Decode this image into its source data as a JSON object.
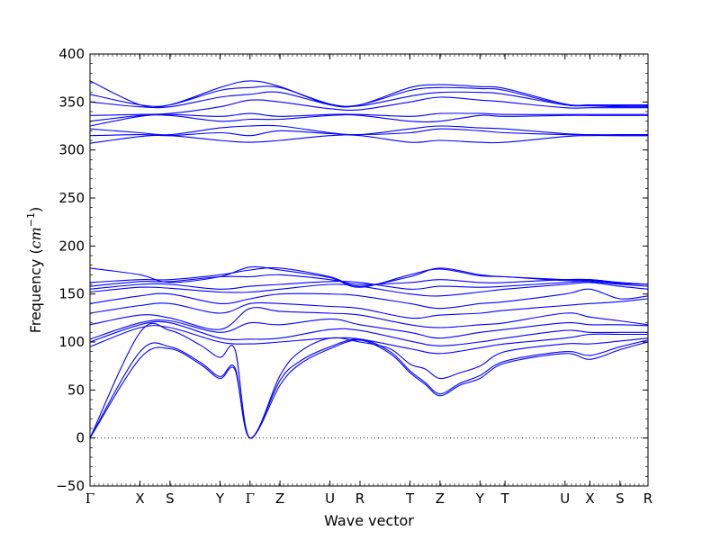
{
  "chart_data": {
    "type": "line",
    "title": "",
    "xlabel": "Wave vector",
    "ylabel_prefix": "Frequency (",
    "ylabel_unit": "cm",
    "ylabel_exp": "−1",
    "ylabel_suffix": ")",
    "ylim": [
      -50,
      400
    ],
    "yticks": [
      -50,
      0,
      50,
      100,
      150,
      200,
      250,
      300,
      350,
      400
    ],
    "grid": false,
    "legend": "none",
    "line_color": "#0000ff",
    "zero_line": {
      "y": 0,
      "style": "dotted",
      "color": "#000000"
    },
    "x_labels": [
      {
        "label": "Γ",
        "x": 0.0
      },
      {
        "label": "X",
        "x": 0.5
      },
      {
        "label": "S",
        "x": 0.8
      },
      {
        "label": "Y",
        "x": 1.3
      },
      {
        "label": "Γ",
        "x": 1.6
      },
      {
        "label": "Z",
        "x": 1.9
      },
      {
        "label": "U",
        "x": 2.4
      },
      {
        "label": "R",
        "x": 2.7
      },
      {
        "label": "T",
        "x": 3.2
      },
      {
        "label": "Z",
        "x": 3.5
      },
      {
        "label": "Y",
        "x": 3.9
      },
      {
        "label": "T",
        "x": 4.15
      },
      {
        "label": "U",
        "x": 4.75
      },
      {
        "label": "X",
        "x": 5.0
      },
      {
        "label": "S",
        "x": 5.3
      },
      {
        "label": "R",
        "x": 5.58
      }
    ],
    "xlim": [
      0,
      5.58
    ],
    "series": [
      {
        "x": [
          0,
          0.5,
          0.8,
          1.1,
          1.3,
          1.45,
          1.6,
          1.9,
          2.1,
          2.4,
          2.7,
          3.0,
          3.2,
          3.35,
          3.5,
          3.7,
          3.9,
          4.15,
          4.75,
          5.0,
          5.3,
          5.58
        ],
        "y": [
          0,
          83,
          93,
          77,
          62,
          71,
          0,
          55,
          77,
          93,
          102,
          88,
          68,
          56,
          44,
          55,
          62,
          78,
          88,
          82,
          92,
          100
        ]
      },
      {
        "x": [
          0,
          0.5,
          0.8,
          1.1,
          1.3,
          1.45,
          1.6,
          1.9,
          2.1,
          2.4,
          2.7,
          3.0,
          3.2,
          3.35,
          3.5,
          3.7,
          3.9,
          4.15,
          4.75,
          5.0,
          5.3,
          5.58
        ],
        "y": [
          0,
          90,
          95,
          79,
          64,
          73,
          0,
          60,
          80,
          95,
          103,
          90,
          70,
          58,
          46,
          57,
          65,
          80,
          90,
          86,
          95,
          102
        ]
      },
      {
        "x": [
          0,
          0.5,
          0.8,
          1.1,
          1.3,
          1.45,
          1.6,
          1.9,
          2.1,
          2.4,
          2.7,
          3.0,
          3.2,
          3.35,
          3.5,
          3.7,
          3.9,
          4.15,
          4.75,
          5.0,
          5.3,
          5.58
        ],
        "y": [
          0,
          110,
          112,
          97,
          84,
          92,
          0,
          65,
          90,
          104,
          100,
          93,
          77,
          72,
          62,
          68,
          75,
          90,
          98,
          98,
          101,
          104
        ]
      },
      {
        "x": [
          0,
          0.5,
          0.8,
          1.3,
          1.6,
          1.9,
          2.4,
          2.7,
          3.2,
          3.5,
          3.9,
          4.15,
          4.75,
          5.0,
          5.3,
          5.58
        ],
        "y": [
          95,
          115,
          115,
          100,
          98,
          100,
          104,
          103,
          93,
          88,
          94,
          98,
          104,
          108,
          108,
          108
        ]
      },
      {
        "x": [
          0,
          0.5,
          0.8,
          1.3,
          1.6,
          1.9,
          2.4,
          2.7,
          3.2,
          3.5,
          3.9,
          4.15,
          4.75,
          5.0,
          5.3,
          5.58
        ],
        "y": [
          100,
          118,
          120,
          104,
          103,
          104,
          113,
          112,
          101,
          96,
          100,
          104,
          112,
          110,
          110,
          110
        ]
      },
      {
        "x": [
          0,
          0.5,
          0.8,
          1.3,
          1.6,
          1.9,
          2.4,
          2.7,
          3.2,
          3.5,
          3.9,
          4.15,
          4.75,
          5.0,
          5.3,
          5.58
        ],
        "y": [
          103,
          120,
          122,
          110,
          120,
          118,
          124,
          118,
          110,
          104,
          110,
          113,
          120,
          118,
          118,
          117
        ]
      },
      {
        "x": [
          0,
          0.5,
          0.8,
          1.3,
          1.6,
          1.9,
          2.4,
          2.7,
          3.2,
          3.5,
          3.9,
          4.15,
          4.75,
          5.0,
          5.3,
          5.58
        ],
        "y": [
          118,
          128,
          125,
          113,
          135,
          132,
          130,
          128,
          118,
          115,
          118,
          120,
          130,
          126,
          122,
          118
        ]
      },
      {
        "x": [
          0,
          0.5,
          0.8,
          1.3,
          1.6,
          1.9,
          2.4,
          2.7,
          3.2,
          3.5,
          3.9,
          4.15,
          4.75,
          5.0,
          5.3,
          5.58
        ],
        "y": [
          130,
          138,
          140,
          130,
          140,
          140,
          137,
          135,
          125,
          128,
          130,
          133,
          138,
          140,
          142,
          145
        ]
      },
      {
        "x": [
          0,
          0.5,
          0.8,
          1.3,
          1.6,
          1.9,
          2.4,
          2.7,
          3.2,
          3.5,
          3.9,
          4.15,
          4.75,
          5.0,
          5.3,
          5.58
        ],
        "y": [
          140,
          148,
          150,
          140,
          145,
          150,
          150,
          148,
          140,
          135,
          140,
          142,
          150,
          155,
          145,
          148
        ]
      },
      {
        "x": [
          0,
          0.5,
          0.8,
          1.3,
          1.6,
          1.9,
          2.4,
          2.7,
          3.2,
          3.5,
          3.9,
          4.15,
          4.75,
          5.0,
          5.3,
          5.58
        ],
        "y": [
          152,
          157,
          156,
          152,
          152,
          155,
          160,
          158,
          150,
          148,
          152,
          155,
          160,
          162,
          158,
          155
        ]
      },
      {
        "x": [
          0,
          0.5,
          0.8,
          1.3,
          1.6,
          1.9,
          2.4,
          2.7,
          3.2,
          3.5,
          3.9,
          4.15,
          4.75,
          5.0,
          5.3,
          5.58
        ],
        "y": [
          155,
          160,
          160,
          155,
          158,
          160,
          163,
          162,
          155,
          158,
          157,
          158,
          162,
          163,
          160,
          158
        ]
      },
      {
        "x": [
          0,
          0.5,
          0.8,
          1.3,
          1.6,
          1.9,
          2.4,
          2.7,
          3.2,
          3.5,
          3.9,
          4.15,
          4.75,
          5.0,
          5.3,
          5.58
        ],
        "y": [
          158,
          163,
          163,
          168,
          168,
          170,
          165,
          160,
          162,
          165,
          162,
          162,
          165,
          165,
          162,
          160
        ]
      },
      {
        "x": [
          0,
          0.5,
          0.8,
          1.3,
          1.6,
          1.9,
          2.4,
          2.7,
          3.2,
          3.5,
          3.9,
          4.15,
          4.75,
          5.0,
          5.3,
          5.58
        ],
        "y": [
          162,
          165,
          165,
          170,
          175,
          177,
          168,
          158,
          168,
          177,
          170,
          168,
          165,
          165,
          162,
          160
        ]
      },
      {
        "x": [
          0,
          0.5,
          0.8,
          1.3,
          1.6,
          1.9,
          2.4,
          2.7,
          3.2,
          3.5,
          3.9,
          4.15,
          4.75,
          5.0,
          5.3,
          5.58
        ],
        "y": [
          177,
          170,
          162,
          168,
          178,
          175,
          167,
          157,
          170,
          176,
          169,
          168,
          164,
          164,
          161,
          160
        ]
      },
      {
        "x": [
          0,
          0.5,
          0.8,
          1.3,
          1.6,
          1.9,
          2.4,
          2.7,
          3.2,
          3.5,
          3.9,
          4.15,
          4.75,
          5.0,
          5.3,
          5.58
        ],
        "y": [
          307,
          314,
          315,
          310,
          308,
          310,
          315,
          315,
          308,
          310,
          308,
          308,
          314,
          315,
          315,
          315
        ]
      },
      {
        "x": [
          0,
          0.5,
          0.8,
          1.3,
          1.6,
          1.9,
          2.4,
          2.7,
          3.2,
          3.5,
          3.9,
          4.15,
          4.75,
          5.0,
          5.3,
          5.58
        ],
        "y": [
          315,
          316,
          315,
          318,
          315,
          320,
          317,
          316,
          318,
          322,
          320,
          318,
          316,
          316,
          315,
          315
        ]
      },
      {
        "x": [
          0,
          0.5,
          0.8,
          1.3,
          1.6,
          1.9,
          2.4,
          2.7,
          3.2,
          3.5,
          3.9,
          4.15,
          4.75,
          5.0,
          5.3,
          5.58
        ],
        "y": [
          322,
          318,
          316,
          323,
          325,
          325,
          318,
          316,
          322,
          325,
          323,
          322,
          317,
          316,
          316,
          316
        ]
      },
      {
        "x": [
          0,
          0.5,
          0.8,
          1.3,
          1.6,
          1.9,
          2.4,
          2.7,
          3.2,
          3.5,
          3.9,
          4.15,
          4.75,
          5.0,
          5.3,
          5.58
        ],
        "y": [
          325,
          335,
          336,
          330,
          332,
          332,
          336,
          336,
          330,
          330,
          336,
          335,
          336,
          336,
          336,
          336
        ]
      },
      {
        "x": [
          0,
          0.5,
          0.8,
          1.3,
          1.6,
          1.9,
          2.4,
          2.7,
          3.2,
          3.5,
          3.9,
          4.15,
          4.75,
          5.0,
          5.3,
          5.58
        ],
        "y": [
          330,
          336,
          337,
          335,
          338,
          335,
          337,
          337,
          335,
          338,
          338,
          337,
          337,
          337,
          337,
          337
        ]
      },
      {
        "x": [
          0,
          0.5,
          0.8,
          1.3,
          1.6,
          1.9,
          2.4,
          2.7,
          3.2,
          3.5,
          3.9,
          4.15,
          4.75,
          5.0,
          5.3,
          5.58
        ],
        "y": [
          336,
          337,
          338,
          345,
          352,
          350,
          343,
          342,
          350,
          355,
          352,
          350,
          344,
          344,
          344,
          344
        ]
      },
      {
        "x": [
          0,
          0.5,
          0.8,
          1.3,
          1.6,
          1.9,
          2.4,
          2.7,
          3.2,
          3.5,
          3.9,
          4.15,
          4.75,
          5.0,
          5.3,
          5.58
        ],
        "y": [
          350,
          345,
          345,
          355,
          358,
          360,
          347,
          346,
          356,
          360,
          360,
          358,
          347,
          346,
          345,
          345
        ]
      },
      {
        "x": [
          0,
          0.5,
          0.8,
          1.3,
          1.6,
          1.9,
          2.4,
          2.7,
          3.2,
          3.5,
          3.9,
          4.15,
          4.75,
          5.0,
          5.3,
          5.58
        ],
        "y": [
          358,
          347,
          347,
          362,
          365,
          365,
          348,
          347,
          362,
          365,
          364,
          362,
          347,
          347,
          346,
          346
        ]
      },
      {
        "x": [
          0,
          0.5,
          0.8,
          1.3,
          1.6,
          1.9,
          2.4,
          2.7,
          3.2,
          3.5,
          3.9,
          4.15,
          4.75,
          5.0,
          5.3,
          5.58
        ],
        "y": [
          372,
          347,
          347,
          365,
          372,
          366,
          347,
          347,
          365,
          368,
          366,
          364,
          348,
          347,
          347,
          347
        ]
      }
    ]
  }
}
